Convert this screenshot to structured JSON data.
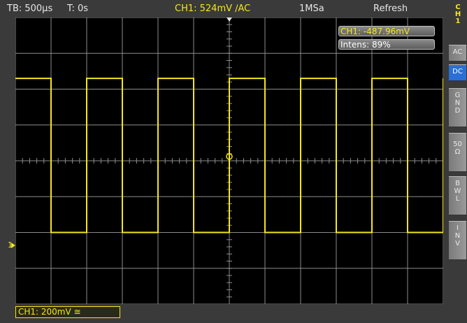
{
  "status_bar": {
    "timebase": "TB: 500µs",
    "trigger_time": "T: 0s",
    "trigger_info": "CH1: 524mV ∕AC",
    "sample_rate": "1MSa",
    "mode": "Refresh"
  },
  "readouts": {
    "ch1_value": "CH1: -487.96mV",
    "intensity": "Intens: 89%"
  },
  "channel_scale": "CH1: 200mV ≅",
  "side_menu": {
    "title": [
      "C",
      "H",
      "1"
    ],
    "buttons": [
      {
        "label": [
          "AC"
        ],
        "active": false
      },
      {
        "label": [
          "DC"
        ],
        "active": true
      },
      {
        "label": [
          "G",
          "N",
          "D"
        ],
        "active": false
      },
      {
        "label": [
          "50",
          "Ω"
        ],
        "active": false
      },
      {
        "label": [
          "B",
          "W",
          "L"
        ],
        "active": false
      },
      {
        "label": [
          "I",
          "N",
          "V"
        ],
        "active": false
      }
    ]
  },
  "waveform": {
    "type": "square",
    "color": "#f4e61c",
    "high_level_div": 2.3,
    "low_level_div": -2.0,
    "period_div": 2.0,
    "first_rise_div": 2.0
  },
  "colors": {
    "trace": "#f4e61c",
    "grid": "#8c8c8c",
    "active_button": "#2a6fd6"
  }
}
